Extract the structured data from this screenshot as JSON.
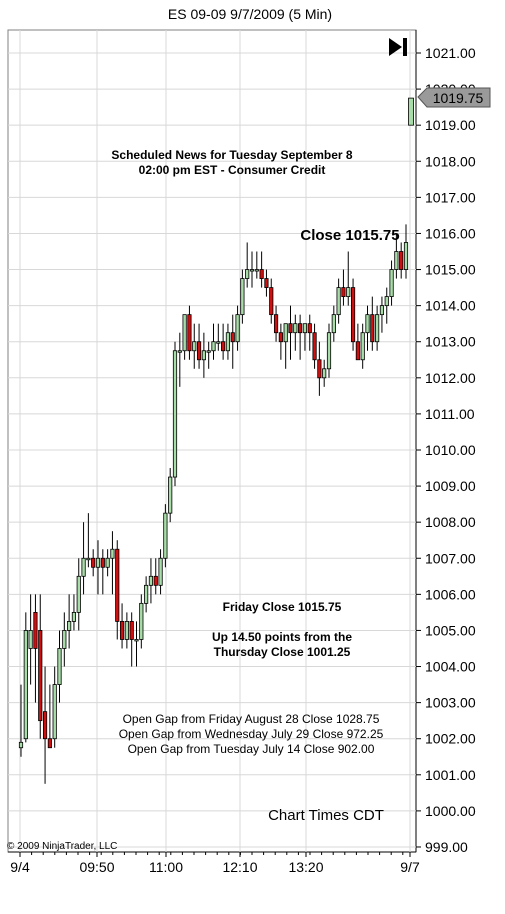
{
  "window": {
    "title": "ES 09-09  9/7/2009 (5 Min)"
  },
  "chart_data": {
    "type": "candlestick",
    "symbol": "ES 09-09",
    "interval": "5 Min",
    "y_ticks": [
      "1021.00",
      "1020.00",
      "1019.00",
      "1018.00",
      "1017.00",
      "1016.00",
      "1015.00",
      "1014.00",
      "1013.00",
      "1012.00",
      "1011.00",
      "1010.00",
      "1009.00",
      "1008.00",
      "1007.00",
      "1006.00",
      "1005.00",
      "1004.00",
      "1003.00",
      "1002.00",
      "1001.00",
      "1000.00",
      "999.00"
    ],
    "x_ticks": [
      "9/4",
      "09:50",
      "11:00",
      "12:10",
      "13:20",
      "9/7"
    ],
    "ylim": [
      998.9,
      1022.2
    ],
    "grid": true,
    "last_price": "1019.75",
    "up_color": "#a8dca8",
    "down_color": "#d01010",
    "candles": [
      [
        1001.75,
        1003.5,
        1001.5,
        1001.9
      ],
      [
        1002.0,
        1005.5,
        1001.9,
        1005.0
      ],
      [
        1004.5,
        1006.0,
        1003.5,
        1005.0
      ],
      [
        1005.5,
        1006.0,
        1003.0,
        1004.5
      ],
      [
        1005.0,
        1006.0,
        1002.0,
        1002.5
      ],
      [
        1002.75,
        1004.0,
        1000.75,
        1002.0
      ],
      [
        1002.0,
        1003.5,
        1001.75,
        1001.75
      ],
      [
        1002.0,
        1004.0,
        1001.75,
        1003.5
      ],
      [
        1003.5,
        1005.0,
        1003.0,
        1004.5
      ],
      [
        1004.5,
        1005.5,
        1004.0,
        1005.0
      ],
      [
        1005.0,
        1006.0,
        1004.5,
        1005.25
      ],
      [
        1005.25,
        1006.0,
        1005.0,
        1005.5
      ],
      [
        1005.5,
        1007.0,
        1005.0,
        1006.5
      ],
      [
        1006.5,
        1008.0,
        1006.0,
        1007.0
      ],
      [
        1007.0,
        1008.25,
        1006.75,
        1007.0
      ],
      [
        1007.0,
        1007.25,
        1006.5,
        1006.75
      ],
      [
        1006.75,
        1007.5,
        1006.0,
        1007.0
      ],
      [
        1007.0,
        1007.25,
        1006.0,
        1006.75
      ],
      [
        1006.75,
        1007.25,
        1006.5,
        1007.0
      ],
      [
        1007.0,
        1007.75,
        1006.0,
        1007.25
      ],
      [
        1007.25,
        1007.5,
        1004.75,
        1005.25
      ],
      [
        1005.25,
        1005.75,
        1004.5,
        1004.75
      ],
      [
        1004.75,
        1005.5,
        1004.5,
        1005.25
      ],
      [
        1005.25,
        1005.5,
        1004.0,
        1004.75
      ],
      [
        1004.75,
        1005.25,
        1004.0,
        1004.75
      ],
      [
        1004.75,
        1006.0,
        1004.5,
        1005.75
      ],
      [
        1005.75,
        1006.5,
        1005.5,
        1006.25
      ],
      [
        1006.25,
        1007.0,
        1005.75,
        1006.5
      ],
      [
        1006.5,
        1007.0,
        1006.0,
        1006.25
      ],
      [
        1006.25,
        1007.25,
        1006.0,
        1007.0
      ],
      [
        1007.0,
        1008.5,
        1006.75,
        1008.25
      ],
      [
        1008.25,
        1009.5,
        1008.0,
        1009.25
      ],
      [
        1009.25,
        1013.0,
        1009.0,
        1012.75
      ],
      [
        1012.75,
        1013.25,
        1011.75,
        1012.75
      ],
      [
        1012.75,
        1013.75,
        1012.5,
        1013.75
      ],
      [
        1013.75,
        1014.0,
        1012.5,
        1012.75
      ],
      [
        1012.75,
        1013.5,
        1012.25,
        1013.0
      ],
      [
        1013.0,
        1013.5,
        1012.25,
        1012.5
      ],
      [
        1012.5,
        1013.25,
        1012.0,
        1012.75
      ],
      [
        1012.75,
        1013.0,
        1012.25,
        1012.75
      ],
      [
        1012.75,
        1013.5,
        1012.5,
        1013.0
      ],
      [
        1013.0,
        1013.5,
        1012.75,
        1013.0
      ],
      [
        1013.0,
        1013.5,
        1012.5,
        1012.75
      ],
      [
        1012.75,
        1013.5,
        1012.5,
        1013.25
      ],
      [
        1013.25,
        1013.75,
        1012.25,
        1013.0
      ],
      [
        1013.0,
        1014.0,
        1012.75,
        1013.75
      ],
      [
        1013.75,
        1015.0,
        1013.5,
        1014.75
      ],
      [
        1014.75,
        1015.75,
        1014.5,
        1015.0
      ],
      [
        1015.0,
        1015.5,
        1014.5,
        1015.0
      ],
      [
        1015.0,
        1015.5,
        1014.75,
        1015.0
      ],
      [
        1015.0,
        1015.5,
        1014.5,
        1014.75
      ],
      [
        1014.75,
        1015.0,
        1014.25,
        1014.5
      ],
      [
        1014.5,
        1014.75,
        1013.5,
        1013.75
      ],
      [
        1013.75,
        1014.0,
        1013.0,
        1013.25
      ],
      [
        1013.25,
        1013.5,
        1012.5,
        1013.0
      ],
      [
        1013.0,
        1013.5,
        1012.25,
        1013.5
      ],
      [
        1013.5,
        1014.0,
        1012.5,
        1013.25
      ],
      [
        1013.25,
        1013.75,
        1012.75,
        1013.5
      ],
      [
        1013.5,
        1013.75,
        1012.5,
        1013.25
      ],
      [
        1013.25,
        1013.5,
        1012.75,
        1013.5
      ],
      [
        1013.5,
        1013.75,
        1012.75,
        1013.25
      ],
      [
        1013.25,
        1013.5,
        1012.25,
        1012.5
      ],
      [
        1012.5,
        1013.0,
        1011.5,
        1012.0
      ],
      [
        1012.0,
        1012.5,
        1011.75,
        1012.25
      ],
      [
        1012.25,
        1013.5,
        1012.0,
        1013.25
      ],
      [
        1013.25,
        1014.0,
        1013.0,
        1013.75
      ],
      [
        1013.75,
        1014.75,
        1013.5,
        1014.5
      ],
      [
        1014.5,
        1015.0,
        1014.0,
        1014.25
      ],
      [
        1014.25,
        1015.5,
        1014.0,
        1014.5
      ],
      [
        1014.5,
        1014.75,
        1012.75,
        1013.0
      ],
      [
        1013.0,
        1013.5,
        1012.5,
        1012.5
      ],
      [
        1012.5,
        1013.5,
        1012.25,
        1013.25
      ],
      [
        1013.25,
        1014.0,
        1012.75,
        1013.75
      ],
      [
        1013.75,
        1014.25,
        1012.75,
        1013.0
      ],
      [
        1013.0,
        1014.0,
        1012.75,
        1013.75
      ],
      [
        1013.75,
        1014.25,
        1013.25,
        1014.0
      ],
      [
        1014.0,
        1014.5,
        1013.5,
        1014.25
      ],
      [
        1014.25,
        1015.25,
        1014.0,
        1015.0
      ],
      [
        1015.0,
        1016.0,
        1014.75,
        1015.5
      ],
      [
        1015.5,
        1015.75,
        1014.75,
        1015.0
      ],
      [
        1015.0,
        1016.25,
        1014.75,
        1015.75
      ]
    ],
    "last_bar": [
      1019.0,
      1019.75,
      1019.0,
      1019.75
    ],
    "annotations": {
      "news_line1": "Scheduled News for Tuesday September 8",
      "news_line2": "02:00 pm EST - Consumer Credit",
      "close_label": "Close 1015.75",
      "friday_close": "Friday Close 1015.75",
      "up_line1": "Up 14.50 points from the",
      "up_line2": "Thursday Close 1001.25",
      "gap1": "Open Gap from Friday August 28 Close 1028.75",
      "gap2": "Open Gap from Wednesday July 29 Close 972.25",
      "gap3": "Open Gap from Tuesday July 14 Close 902.00",
      "chart_times": "Chart Times CDT",
      "copyright": "© 2009 NinjaTrader, LLC"
    }
  }
}
